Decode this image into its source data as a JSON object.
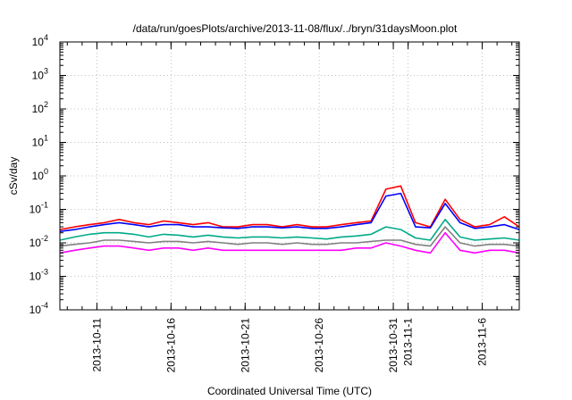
{
  "chart_data": {
    "type": "line",
    "title": "/data/run/goesPlots/archive/2013-11-08/flux/../bryn/31daysMoon.plot",
    "xlabel": "Coordinated Universal Time (UTC)",
    "ylabel": "cSv/day",
    "y_scale": "log",
    "ylim": [
      0.0001,
      10000
    ],
    "xlim": [
      "2013-10-08 12:00",
      "2013-11-08 12:00"
    ],
    "grid": true,
    "x_ticks": [
      "2013-10-11",
      "2013-10-16",
      "2013-10-21",
      "2013-10-26",
      "2013-10-31",
      "2013-11-1",
      "2013-11-6"
    ],
    "x_tick_dates": [
      "2013-10-11",
      "2013-10-16",
      "2013-10-21",
      "2013-10-26",
      "2013-10-31",
      "2013-11-01",
      "2013-11-06"
    ],
    "y_ticks": [
      {
        "base": "10",
        "exp": "-4",
        "value": 0.0001
      },
      {
        "base": "10",
        "exp": "-3",
        "value": 0.001
      },
      {
        "base": "10",
        "exp": "-2",
        "value": 0.01
      },
      {
        "base": "10",
        "exp": "-1",
        "value": 0.1
      },
      {
        "base": "10",
        "exp": "0",
        "value": 1
      },
      {
        "base": "10",
        "exp": "1",
        "value": 10
      },
      {
        "base": "10",
        "exp": "2",
        "value": 100
      },
      {
        "base": "10",
        "exp": "3",
        "value": 1000
      },
      {
        "base": "10",
        "exp": "4",
        "value": 10000
      }
    ],
    "x": [
      "2013-10-08 12:00",
      "2013-10-09 12:00",
      "2013-10-10 12:00",
      "2013-10-11 12:00",
      "2013-10-12 12:00",
      "2013-10-13 12:00",
      "2013-10-14 12:00",
      "2013-10-15 12:00",
      "2013-10-16 12:00",
      "2013-10-17 12:00",
      "2013-10-18 12:00",
      "2013-10-19 12:00",
      "2013-10-20 12:00",
      "2013-10-21 12:00",
      "2013-10-22 12:00",
      "2013-10-23 12:00",
      "2013-10-24 12:00",
      "2013-10-25 12:00",
      "2013-10-26 12:00",
      "2013-10-27 12:00",
      "2013-10-28 12:00",
      "2013-10-29 12:00",
      "2013-10-30 12:00",
      "2013-10-31 12:00",
      "2013-11-01 12:00",
      "2013-11-02 12:00",
      "2013-11-03 12:00",
      "2013-11-04 12:00",
      "2013-11-05 12:00",
      "2013-11-06 12:00",
      "2013-11-07 12:00",
      "2013-11-08 12:00"
    ],
    "series": [
      {
        "color": "#ff0000",
        "values": [
          0.025,
          0.03,
          0.035,
          0.04,
          0.05,
          0.04,
          0.035,
          0.045,
          0.04,
          0.035,
          0.04,
          0.03,
          0.03,
          0.035,
          0.035,
          0.03,
          0.035,
          0.03,
          0.03,
          0.035,
          0.04,
          0.045,
          0.4,
          0.5,
          0.04,
          0.03,
          0.2,
          0.05,
          0.03,
          0.035,
          0.06,
          0.03
        ]
      },
      {
        "color": "#0000ff",
        "values": [
          0.022,
          0.025,
          0.03,
          0.035,
          0.04,
          0.035,
          0.03,
          0.035,
          0.035,
          0.03,
          0.03,
          0.028,
          0.027,
          0.03,
          0.03,
          0.028,
          0.03,
          0.027,
          0.027,
          0.03,
          0.035,
          0.04,
          0.25,
          0.3,
          0.03,
          0.028,
          0.15,
          0.04,
          0.027,
          0.03,
          0.035,
          0.025
        ]
      },
      {
        "color": "#00aa88",
        "values": [
          0.012,
          0.015,
          0.018,
          0.02,
          0.02,
          0.018,
          0.015,
          0.018,
          0.017,
          0.015,
          0.017,
          0.015,
          0.014,
          0.015,
          0.015,
          0.014,
          0.015,
          0.014,
          0.013,
          0.015,
          0.016,
          0.018,
          0.03,
          0.025,
          0.014,
          0.012,
          0.05,
          0.015,
          0.012,
          0.013,
          0.014,
          0.012
        ]
      },
      {
        "color": "#808080",
        "values": [
          0.008,
          0.009,
          0.01,
          0.012,
          0.012,
          0.011,
          0.01,
          0.011,
          0.011,
          0.01,
          0.011,
          0.01,
          0.009,
          0.01,
          0.01,
          0.009,
          0.01,
          0.009,
          0.009,
          0.01,
          0.01,
          0.011,
          0.012,
          0.012,
          0.009,
          0.008,
          0.03,
          0.01,
          0.008,
          0.009,
          0.009,
          0.008
        ]
      },
      {
        "color": "#ff00ff",
        "values": [
          0.005,
          0.006,
          0.007,
          0.008,
          0.008,
          0.007,
          0.006,
          0.007,
          0.007,
          0.006,
          0.007,
          0.006,
          0.006,
          0.006,
          0.006,
          0.006,
          0.006,
          0.006,
          0.006,
          0.006,
          0.007,
          0.007,
          0.01,
          0.008,
          0.006,
          0.005,
          0.02,
          0.006,
          0.005,
          0.006,
          0.006,
          0.005
        ]
      }
    ]
  }
}
